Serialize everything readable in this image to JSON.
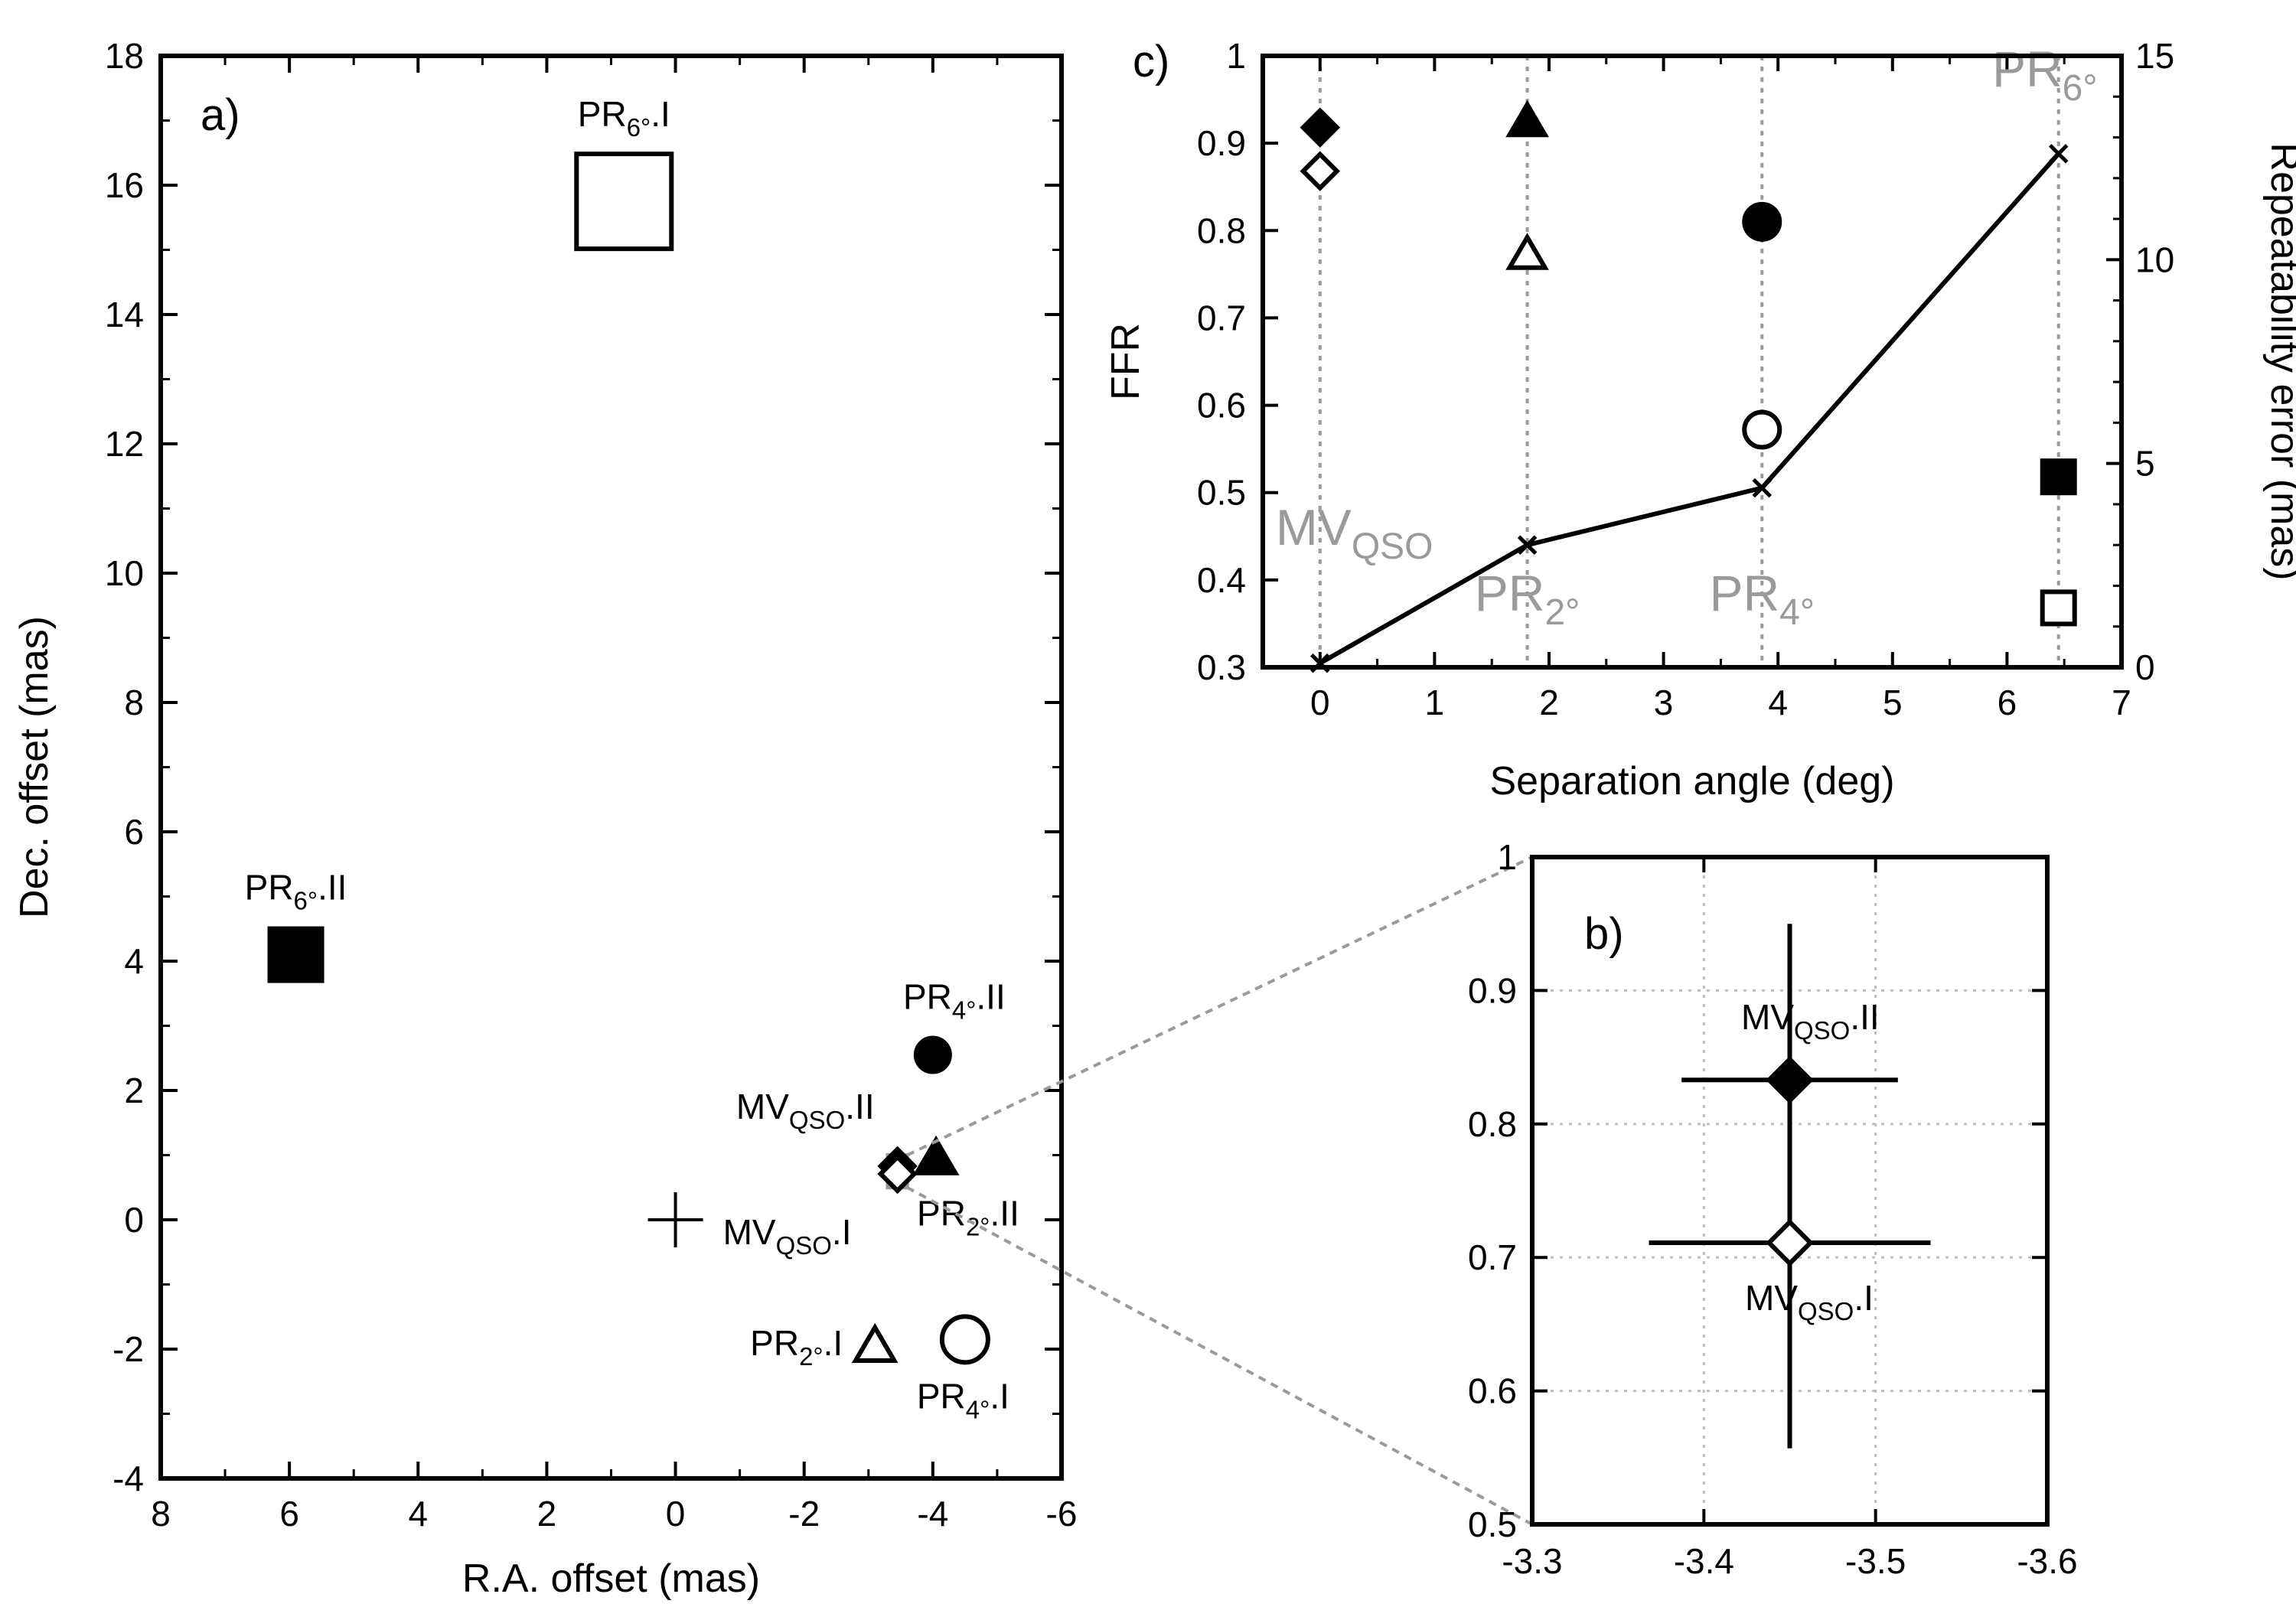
{
  "chart_data": [
    {
      "id": "a",
      "type": "scatter",
      "panel_label": "a)",
      "xlabel": "R.A. offset (mas)",
      "ylabel": "Dec. offset (mas)",
      "xlim": [
        8,
        -6
      ],
      "ylim": [
        -4,
        18
      ],
      "xticks": [
        8,
        6,
        4,
        2,
        0,
        -2,
        -4,
        -6
      ],
      "yticks": [
        -4,
        -2,
        0,
        2,
        4,
        6,
        8,
        10,
        12,
        14,
        16,
        18
      ],
      "grid": false,
      "points": [
        {
          "name": "PR6.I",
          "label": "PR6°.I",
          "sub": "6°",
          "base": "PR",
          "suffix": ".I",
          "x": 0.8,
          "y": 15.75,
          "marker": "square",
          "filled": false,
          "size": "large"
        },
        {
          "name": "PR6.II",
          "label": "PR6°.II",
          "sub": "6°",
          "base": "PR",
          "suffix": ".II",
          "x": 5.9,
          "y": 4.1,
          "marker": "square",
          "filled": true,
          "size": "large"
        },
        {
          "name": "PR4.II",
          "label": "PR4°.II",
          "sub": "4°",
          "base": "PR",
          "suffix": ".II",
          "x": -4.0,
          "y": 2.55,
          "marker": "circle",
          "filled": true,
          "size": "normal"
        },
        {
          "name": "MVQSO.II",
          "label": "MVQSO.II",
          "sub": "QSO",
          "base": "MV",
          "suffix": ".II",
          "x": -3.45,
          "y": 0.83,
          "marker": "diamond",
          "filled": true,
          "size": "normal"
        },
        {
          "name": "MVQSO.I",
          "label": "MVQSO.I",
          "sub": "QSO",
          "base": "MV",
          "suffix": ".I",
          "x": -3.45,
          "y": 0.71,
          "marker": "diamond",
          "filled": false,
          "size": "normal"
        },
        {
          "name": "PR2.II",
          "label": "PR2°.II",
          "sub": "2°",
          "base": "PR",
          "suffix": ".II",
          "x": -4.05,
          "y": 0.95,
          "marker": "triangle",
          "filled": true,
          "size": "normal"
        },
        {
          "name": "PR2.I",
          "label": "PR2°.I",
          "sub": "2°",
          "base": "PR",
          "suffix": ".I",
          "x": -3.1,
          "y": -1.95,
          "marker": "triangle",
          "filled": false,
          "size": "normal"
        },
        {
          "name": "PR4.I",
          "label": "PR4°.I",
          "sub": "4°",
          "base": "PR",
          "suffix": ".I",
          "x": -4.5,
          "y": -1.85,
          "marker": "circle",
          "filled": false,
          "size": "large"
        }
      ],
      "origin_marker": {
        "x": 0,
        "y": 0,
        "marker": "plus"
      },
      "origin_label": {
        "base": "MV",
        "sub": "QSO",
        "suffix": ".I"
      },
      "zoom_box": {
        "x": [
          -3.3,
          -3.6
        ],
        "y": [
          0.5,
          1.0
        ]
      }
    },
    {
      "id": "b",
      "type": "scatter",
      "panel_label": "b)",
      "xlim": [
        -3.3,
        -3.6
      ],
      "ylim": [
        0.5,
        1.0
      ],
      "xticks": [
        -3.3,
        -3.4,
        -3.5,
        -3.6
      ],
      "xtick_labels": [
        "-3.3",
        "-3.4",
        "-3.5",
        "-3.6"
      ],
      "yticks": [
        0.5,
        0.6,
        0.7,
        0.8,
        0.9,
        1.0
      ],
      "ytick_labels": [
        "0.5",
        "0.6",
        "0.7",
        "0.8",
        "0.9",
        "1"
      ],
      "grid": true,
      "points": [
        {
          "name": "MVQSO.II",
          "base": "MV",
          "sub": "QSO",
          "suffix": ".II",
          "x": -3.45,
          "y": 0.833,
          "xerr": 0.063,
          "yerr": [
            0.803,
            0.863
          ],
          "marker": "diamond",
          "filled": true
        },
        {
          "name": "MVQSO.I",
          "base": "MV",
          "sub": "QSO",
          "suffix": ".I",
          "x": -3.45,
          "y": 0.711,
          "xerr": 0.082,
          "yerr": [
            0.557,
            0.95
          ],
          "marker": "diamond",
          "filled": false
        }
      ]
    },
    {
      "id": "c",
      "type": "scatter",
      "panel_label": "c)",
      "xlabel": "Separation angle (deg)",
      "ylabel": "FFR",
      "y2label": "Repeatability error (mas)",
      "xlim": [
        -0.5,
        7
      ],
      "ylim": [
        0.3,
        1.0
      ],
      "y2lim": [
        0,
        15
      ],
      "xticks": [
        0,
        1,
        2,
        3,
        4,
        5,
        6,
        7
      ],
      "yticks": [
        0.3,
        0.4,
        0.5,
        0.6,
        0.7,
        0.8,
        0.9,
        1.0
      ],
      "ytick_labels": [
        "0.3",
        "0.4",
        "0.5",
        "0.6",
        "0.7",
        "0.8",
        "0.9",
        "1"
      ],
      "y2ticks": [
        0,
        5,
        10,
        15
      ],
      "vlines": [
        {
          "x": 0,
          "base": "MV",
          "sub": "QSO",
          "label_y": 0.44,
          "label_dx": 0.3
        },
        {
          "x": 1.81,
          "base": "PR",
          "sub": "2°",
          "label_y": 0.365,
          "label_dx": 0.0
        },
        {
          "x": 3.86,
          "base": "PR",
          "sub": "4°",
          "label_y": 0.365,
          "label_dx": 0.0
        },
        {
          "x": 6.45,
          "base": "PR",
          "sub": "6°",
          "label_y": 0.965,
          "label_dx": -0.12
        }
      ],
      "ffr_points": [
        {
          "name": "MVQSO.II",
          "x": 0,
          "y": 0.918,
          "marker": "diamond",
          "filled": true
        },
        {
          "name": "MVQSO.I",
          "x": 0,
          "y": 0.868,
          "marker": "diamond",
          "filled": false
        },
        {
          "name": "PR2.II",
          "x": 1.81,
          "y": 0.925,
          "marker": "triangle",
          "filled": true
        },
        {
          "name": "PR2.I",
          "x": 1.81,
          "y": 0.773,
          "marker": "triangle",
          "filled": false
        },
        {
          "name": "PR4.II",
          "x": 3.86,
          "y": 0.81,
          "marker": "circle",
          "filled": true
        },
        {
          "name": "PR4.I",
          "x": 3.86,
          "y": 0.572,
          "marker": "circle",
          "filled": false
        },
        {
          "name": "PR6.II",
          "x": 6.45,
          "y": 0.518,
          "marker": "square",
          "filled": true
        },
        {
          "name": "PR6.I",
          "x": 6.45,
          "y": 0.368,
          "marker": "square",
          "filled": false
        }
      ],
      "repeatability_series": {
        "name": "Repeatability error",
        "x": [
          0,
          1.81,
          3.86,
          6.45
        ],
        "y": [
          0.1,
          3.0,
          4.4,
          12.6
        ],
        "marker": "x"
      }
    }
  ]
}
